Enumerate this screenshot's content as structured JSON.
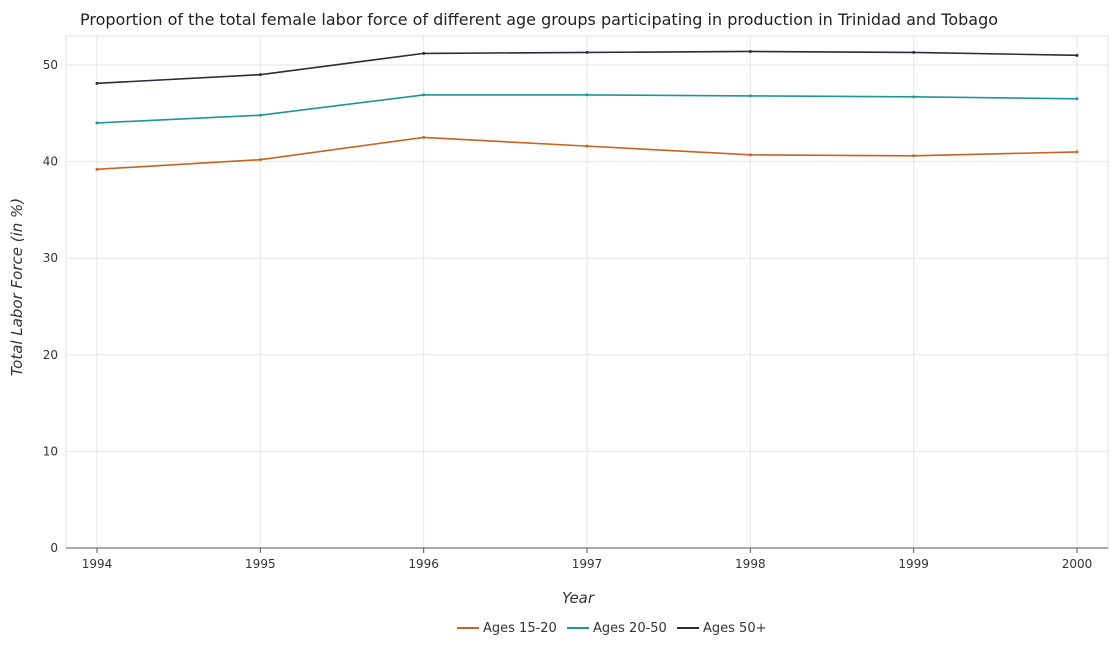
{
  "chart_data": {
    "type": "line",
    "title": "Proportion of the total female labor force of different age groups participating in production in Trinidad and Tobago",
    "xlabel": "Year",
    "ylabel": "Total Labor Force (in %)",
    "categories": [
      "1994",
      "1995",
      "1996",
      "1997",
      "1998",
      "1999",
      "2000"
    ],
    "yticks": [
      "0",
      "10",
      "20",
      "30",
      "40",
      "50"
    ],
    "ylim": [
      0,
      53
    ],
    "grid": true,
    "legend": "bottom",
    "series": [
      {
        "name": "Ages 15-20",
        "color": "#c8641e",
        "values": [
          39.2,
          40.2,
          42.5,
          41.6,
          40.7,
          40.6,
          41.0
        ]
      },
      {
        "name": "Ages 20-50",
        "color": "#1e9696",
        "values": [
          44.0,
          44.8,
          46.9,
          46.9,
          46.8,
          46.7,
          46.5
        ]
      },
      {
        "name": "Ages 50+",
        "color": "#2b2b3b",
        "values": [
          48.1,
          49.0,
          51.2,
          51.3,
          51.4,
          51.3,
          51.0
        ]
      }
    ]
  }
}
